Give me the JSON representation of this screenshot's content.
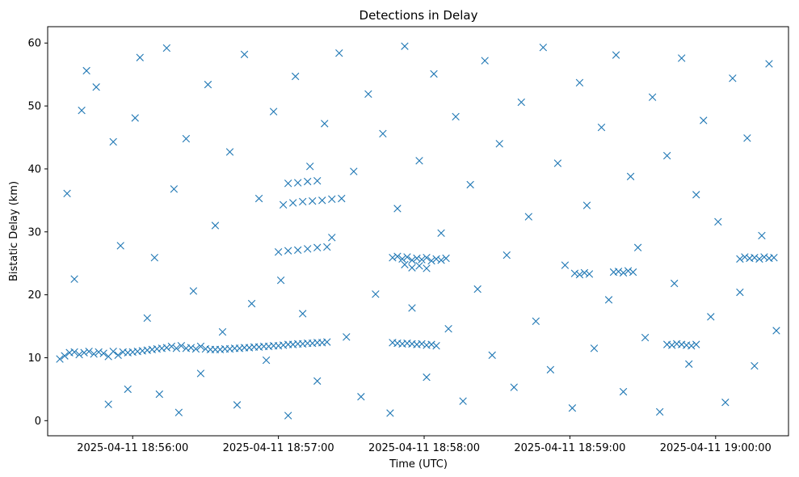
{
  "chart_data": {
    "type": "scatter",
    "title": "Detections in Delay",
    "xlabel": "Time (UTC)",
    "ylabel": "Bistatic Delay (km)",
    "x_range": [
      "2025-04-11 18:55:25",
      "2025-04-11 19:00:30"
    ],
    "ylim": [
      -2.4,
      62.6
    ],
    "x_ticks": [
      {
        "time": "2025-04-11 18:56:00",
        "label": "2025-04-11 18:56:00"
      },
      {
        "time": "2025-04-11 18:57:00",
        "label": "2025-04-11 18:57:00"
      },
      {
        "time": "2025-04-11 18:58:00",
        "label": "2025-04-11 18:58:00"
      },
      {
        "time": "2025-04-11 18:59:00",
        "label": "2025-04-11 18:59:00"
      },
      {
        "time": "2025-04-11 19:00:00",
        "label": "2025-04-11 19:00:00"
      }
    ],
    "y_ticks": [
      0,
      10,
      20,
      30,
      40,
      50,
      60
    ],
    "marker": "x",
    "color": "#1f77b4",
    "grid": false,
    "legend": "none",
    "series": [
      {
        "points": [
          [
            "18:55:30",
            9.8
          ],
          [
            "18:55:32",
            10.3
          ],
          [
            "18:55:34",
            10.8
          ],
          [
            "18:55:36",
            10.9
          ],
          [
            "18:55:38",
            10.5
          ],
          [
            "18:55:40",
            10.8
          ],
          [
            "18:55:42",
            11.0
          ],
          [
            "18:55:44",
            10.6
          ],
          [
            "18:55:46",
            10.9
          ],
          [
            "18:55:48",
            10.7
          ],
          [
            "18:55:50",
            10.2
          ],
          [
            "18:55:52",
            11.0
          ],
          [
            "18:55:54",
            10.4
          ],
          [
            "18:55:56",
            10.9
          ],
          [
            "18:55:58",
            10.8
          ],
          [
            "18:56:00",
            10.9
          ],
          [
            "18:56:02",
            11.0
          ],
          [
            "18:56:04",
            11.1
          ],
          [
            "18:56:06",
            11.2
          ],
          [
            "18:56:08",
            11.3
          ],
          [
            "18:56:10",
            11.4
          ],
          [
            "18:56:12",
            11.5
          ],
          [
            "18:56:14",
            11.6
          ],
          [
            "18:56:16",
            11.8
          ],
          [
            "18:56:18",
            11.5
          ],
          [
            "18:56:20",
            11.9
          ],
          [
            "18:56:22",
            11.5
          ],
          [
            "18:56:24",
            11.6
          ],
          [
            "18:56:26",
            11.4
          ],
          [
            "18:56:28",
            11.8
          ],
          [
            "18:56:30",
            11.4
          ],
          [
            "18:56:32",
            11.3
          ],
          [
            "18:56:34",
            11.3
          ],
          [
            "18:56:36",
            11.3
          ],
          [
            "18:56:38",
            11.4
          ],
          [
            "18:56:40",
            11.4
          ],
          [
            "18:56:42",
            11.5
          ],
          [
            "18:56:44",
            11.5
          ],
          [
            "18:56:46",
            11.6
          ],
          [
            "18:56:48",
            11.6
          ],
          [
            "18:56:50",
            11.7
          ],
          [
            "18:56:52",
            11.7
          ],
          [
            "18:56:54",
            11.8
          ],
          [
            "18:56:56",
            11.8
          ],
          [
            "18:56:58",
            11.9
          ],
          [
            "18:57:00",
            11.9
          ],
          [
            "18:57:02",
            12.0
          ],
          [
            "18:57:04",
            12.1
          ],
          [
            "18:57:06",
            12.1
          ],
          [
            "18:57:08",
            12.2
          ],
          [
            "18:57:10",
            12.2
          ],
          [
            "18:57:12",
            12.3
          ],
          [
            "18:57:14",
            12.3
          ],
          [
            "18:57:16",
            12.4
          ],
          [
            "18:57:18",
            12.4
          ],
          [
            "18:57:20",
            12.5
          ],
          [
            "18:57:47",
            12.4
          ],
          [
            "18:57:49",
            12.3
          ],
          [
            "18:57:51",
            12.2
          ],
          [
            "18:57:53",
            12.3
          ],
          [
            "18:57:55",
            12.2
          ],
          [
            "18:57:57",
            12.1
          ],
          [
            "18:57:59",
            12.2
          ],
          [
            "18:58:01",
            12.0
          ],
          [
            "18:58:03",
            12.1
          ],
          [
            "18:58:05",
            11.9
          ],
          [
            "18:57:47",
            25.9
          ],
          [
            "18:57:49",
            26.1
          ],
          [
            "18:57:51",
            25.7
          ],
          [
            "18:57:53",
            26.0
          ],
          [
            "18:57:55",
            25.5
          ],
          [
            "18:57:57",
            25.8
          ],
          [
            "18:57:59",
            25.6
          ],
          [
            "18:58:01",
            25.9
          ],
          [
            "18:58:03",
            25.4
          ],
          [
            "18:58:05",
            25.7
          ],
          [
            "18:58:07",
            25.5
          ],
          [
            "18:58:09",
            25.8
          ],
          [
            "18:57:52",
            24.8
          ],
          [
            "18:57:55",
            24.3
          ],
          [
            "18:57:58",
            24.6
          ],
          [
            "18:58:01",
            24.2
          ],
          [
            "18:57:00",
            26.8
          ],
          [
            "18:57:04",
            27.0
          ],
          [
            "18:57:08",
            27.1
          ],
          [
            "18:57:12",
            27.3
          ],
          [
            "18:57:16",
            27.5
          ],
          [
            "18:57:20",
            27.6
          ],
          [
            "18:57:02",
            34.3
          ],
          [
            "18:57:06",
            34.6
          ],
          [
            "18:57:10",
            34.8
          ],
          [
            "18:57:14",
            34.9
          ],
          [
            "18:57:18",
            35.0
          ],
          [
            "18:57:22",
            35.2
          ],
          [
            "18:57:26",
            35.3
          ],
          [
            "18:57:04",
            37.7
          ],
          [
            "18:57:08",
            37.8
          ],
          [
            "18:57:12",
            38.0
          ],
          [
            "18:57:16",
            38.1
          ],
          [
            "18:59:02",
            23.4
          ],
          [
            "18:59:04",
            23.2
          ],
          [
            "18:59:06",
            23.5
          ],
          [
            "18:59:08",
            23.3
          ],
          [
            "18:59:18",
            23.6
          ],
          [
            "18:59:20",
            23.7
          ],
          [
            "18:59:22",
            23.5
          ],
          [
            "18:59:24",
            23.8
          ],
          [
            "18:59:26",
            23.6
          ],
          [
            "18:59:40",
            12.1
          ],
          [
            "18:59:42",
            12.0
          ],
          [
            "18:59:44",
            12.2
          ],
          [
            "18:59:46",
            12.1
          ],
          [
            "18:59:48",
            12.0
          ],
          [
            "18:59:50",
            11.9
          ],
          [
            "18:59:52",
            12.1
          ],
          [
            "19:00:10",
            25.7
          ],
          [
            "19:00:12",
            26.0
          ],
          [
            "19:00:14",
            25.8
          ],
          [
            "19:00:16",
            25.9
          ],
          [
            "19:00:18",
            25.7
          ],
          [
            "19:00:20",
            26.0
          ],
          [
            "19:00:22",
            25.8
          ],
          [
            "19:00:24",
            25.9
          ],
          [
            "18:55:33",
            36.1
          ],
          [
            "18:55:36",
            22.5
          ],
          [
            "18:55:39",
            49.3
          ],
          [
            "18:55:41",
            55.6
          ],
          [
            "18:55:45",
            53.0
          ],
          [
            "18:55:50",
            2.6
          ],
          [
            "18:55:52",
            44.3
          ],
          [
            "18:55:55",
            27.8
          ],
          [
            "18:55:58",
            5.0
          ],
          [
            "18:56:01",
            48.1
          ],
          [
            "18:56:03",
            57.7
          ],
          [
            "18:56:06",
            16.3
          ],
          [
            "18:56:09",
            25.9
          ],
          [
            "18:56:11",
            4.2
          ],
          [
            "18:56:14",
            59.2
          ],
          [
            "18:56:17",
            36.8
          ],
          [
            "18:56:19",
            1.3
          ],
          [
            "18:56:22",
            44.8
          ],
          [
            "18:56:25",
            20.6
          ],
          [
            "18:56:28",
            7.5
          ],
          [
            "18:56:31",
            53.4
          ],
          [
            "18:56:34",
            31.0
          ],
          [
            "18:56:37",
            14.1
          ],
          [
            "18:56:40",
            42.7
          ],
          [
            "18:56:43",
            2.5
          ],
          [
            "18:56:46",
            58.2
          ],
          [
            "18:56:49",
            18.6
          ],
          [
            "18:56:52",
            35.3
          ],
          [
            "18:56:55",
            9.6
          ],
          [
            "18:56:58",
            49.1
          ],
          [
            "18:57:01",
            22.3
          ],
          [
            "18:57:04",
            0.8
          ],
          [
            "18:57:07",
            54.7
          ],
          [
            "18:57:10",
            17.0
          ],
          [
            "18:57:13",
            40.4
          ],
          [
            "18:57:16",
            6.3
          ],
          [
            "18:57:19",
            47.2
          ],
          [
            "18:57:22",
            29.1
          ],
          [
            "18:57:25",
            58.4
          ],
          [
            "18:57:28",
            13.3
          ],
          [
            "18:57:31",
            39.6
          ],
          [
            "18:57:34",
            3.8
          ],
          [
            "18:57:37",
            51.9
          ],
          [
            "18:57:40",
            20.1
          ],
          [
            "18:57:43",
            45.6
          ],
          [
            "18:57:46",
            1.2
          ],
          [
            "18:57:49",
            33.7
          ],
          [
            "18:57:52",
            59.5
          ],
          [
            "18:57:55",
            17.9
          ],
          [
            "18:57:58",
            41.3
          ],
          [
            "18:58:01",
            6.9
          ],
          [
            "18:58:04",
            55.1
          ],
          [
            "18:58:07",
            29.8
          ],
          [
            "18:58:10",
            14.6
          ],
          [
            "18:58:13",
            48.3
          ],
          [
            "18:58:16",
            3.1
          ],
          [
            "18:58:19",
            37.5
          ],
          [
            "18:58:22",
            20.9
          ],
          [
            "18:58:25",
            57.2
          ],
          [
            "18:58:28",
            10.4
          ],
          [
            "18:58:31",
            44.0
          ],
          [
            "18:58:34",
            26.3
          ],
          [
            "18:58:37",
            5.3
          ],
          [
            "18:58:40",
            50.6
          ],
          [
            "18:58:43",
            32.4
          ],
          [
            "18:58:46",
            15.8
          ],
          [
            "18:58:49",
            59.3
          ],
          [
            "18:58:52",
            8.1
          ],
          [
            "18:58:55",
            40.9
          ],
          [
            "18:58:58",
            24.7
          ],
          [
            "18:59:01",
            2.0
          ],
          [
            "18:59:04",
            53.7
          ],
          [
            "18:59:07",
            34.2
          ],
          [
            "18:59:10",
            11.5
          ],
          [
            "18:59:13",
            46.6
          ],
          [
            "18:59:16",
            19.2
          ],
          [
            "18:59:19",
            58.1
          ],
          [
            "18:59:22",
            4.6
          ],
          [
            "18:59:25",
            38.8
          ],
          [
            "18:59:28",
            27.5
          ],
          [
            "18:59:31",
            13.2
          ],
          [
            "18:59:34",
            51.4
          ],
          [
            "18:59:37",
            1.4
          ],
          [
            "18:59:40",
            42.1
          ],
          [
            "18:59:43",
            21.8
          ],
          [
            "18:59:46",
            57.6
          ],
          [
            "18:59:49",
            9.0
          ],
          [
            "18:59:52",
            35.9
          ],
          [
            "18:59:55",
            47.7
          ],
          [
            "18:59:58",
            16.5
          ],
          [
            "19:00:01",
            31.6
          ],
          [
            "19:00:04",
            2.9
          ],
          [
            "19:00:07",
            54.4
          ],
          [
            "19:00:10",
            20.4
          ],
          [
            "19:00:13",
            44.9
          ],
          [
            "19:00:16",
            8.7
          ],
          [
            "19:00:19",
            29.4
          ],
          [
            "19:00:22",
            56.7
          ],
          [
            "19:00:25",
            14.3
          ]
        ]
      }
    ]
  }
}
